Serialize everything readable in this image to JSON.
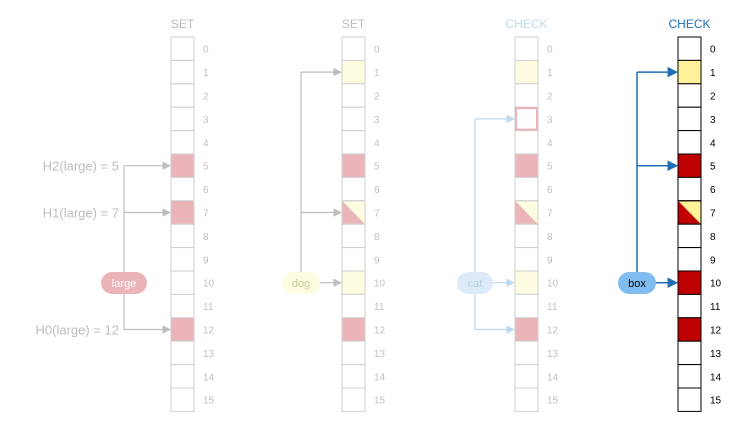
{
  "panels": [
    {
      "title": "SET",
      "title_color": "#bdbdbd",
      "border_color": "#cfcfcf",
      "index_color": "#c0c0c0",
      "token": "large",
      "token_fill": "#eab4b8",
      "token_text_color": "#ffffff",
      "arrow_color": "#bdbdbd",
      "targets": [
        5,
        7,
        12
      ],
      "equations": [
        "H2(large) = 5",
        "H1(large) = 7",
        "H0(large) = 12"
      ],
      "equation_color": "#bdbdbd",
      "cells": {
        "5": "red",
        "7": "red",
        "12": "red"
      },
      "red": "#eab4b8",
      "yellow": "#fdfbe0"
    },
    {
      "title": "SET",
      "title_color": "#bdbdbd",
      "border_color": "#cfcfcf",
      "index_color": "#c0c0c0",
      "token": "dog",
      "token_fill": "#fdfbe0",
      "token_text_color": "#c9c9a0",
      "arrow_color": "#bdbdbd",
      "targets": [
        1,
        7,
        10
      ],
      "equations": [],
      "cells": {
        "1": "yellow",
        "5": "red",
        "7": "split",
        "10": "yellow",
        "12": "red"
      },
      "red": "#eab4b8",
      "yellow": "#fdfbe0"
    },
    {
      "title": "CHECK",
      "title_color": "#bcd9ef",
      "border_color": "#cfcfcf",
      "index_color": "#c0c0c0",
      "token": "cat",
      "token_fill": "#dcebf7",
      "token_text_color": "#b5d0e6",
      "arrow_color": "#bcd9ef",
      "targets": [
        3,
        10,
        12
      ],
      "equations": [],
      "cells": {
        "1": "yellow",
        "5": "red",
        "7": "split",
        "10": "yellow",
        "12": "red"
      },
      "highlight_cell": 3,
      "highlight_color": "#eab4b8",
      "red": "#eab4b8",
      "yellow": "#fdfbe0"
    },
    {
      "title": "CHECK",
      "title_color": "#1f6fb2",
      "border_color": "#000000",
      "index_color": "#000000",
      "token": "box",
      "token_fill": "#7fbcf0",
      "token_text_color": "#000000",
      "arrow_color": "#1f6fb2",
      "targets": [
        1,
        5,
        10
      ],
      "equations": [],
      "cells": {
        "1": "yellow",
        "5": "red",
        "7": "split",
        "10": "red",
        "12": "red"
      },
      "red": "#c00000",
      "yellow": "#fff299"
    }
  ],
  "indices": [
    "0",
    "1",
    "2",
    "3",
    "4",
    "5",
    "6",
    "7",
    "8",
    "9",
    "10",
    "11",
    "12",
    "13",
    "14",
    "15"
  ]
}
